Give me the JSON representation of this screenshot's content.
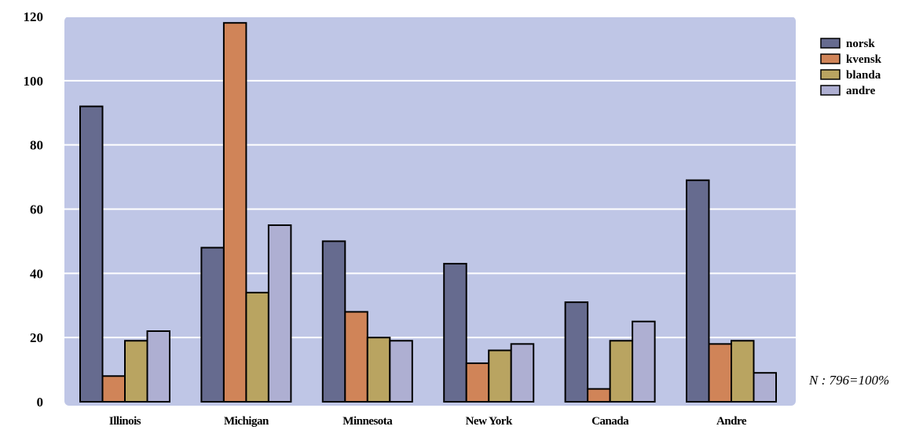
{
  "chart_data": {
    "type": "bar",
    "categories": [
      "Illinois",
      "Michigan",
      "Minnesota",
      "New York",
      "Canada",
      "Andre"
    ],
    "series": [
      {
        "name": "norsk",
        "color": "#666b8f",
        "values": [
          92,
          48,
          50,
          43,
          31,
          69
        ]
      },
      {
        "name": "kvensk",
        "color": "#d08458",
        "values": [
          8,
          118,
          28,
          12,
          4,
          18
        ]
      },
      {
        "name": "blanda",
        "color": "#b9a461",
        "values": [
          19,
          34,
          20,
          16,
          19,
          19
        ]
      },
      {
        "name": "andre",
        "color": "#aeafd2",
        "values": [
          22,
          55,
          19,
          18,
          25,
          9
        ]
      }
    ],
    "yticks": [
      0,
      20,
      40,
      60,
      80,
      100,
      120
    ],
    "ylim": [
      0,
      120
    ],
    "grid": true,
    "legend_position": "top-right",
    "plot_background": "#bfc6e6",
    "gridline_color": "#ffffff",
    "annotation": "N : 796=100%"
  }
}
